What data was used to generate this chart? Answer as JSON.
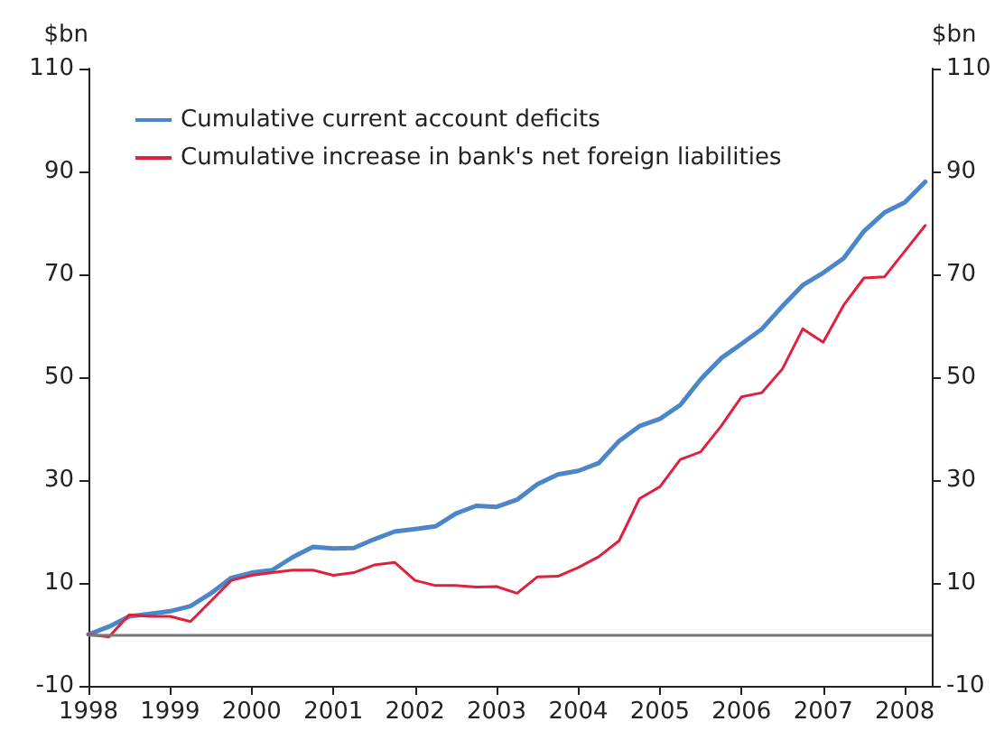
{
  "chart_data": {
    "type": "line",
    "ylabel": "$bn",
    "y2label": "$bn",
    "x": [
      1998,
      1998.25,
      1998.5,
      1998.75,
      1999,
      1999.25,
      1999.5,
      1999.75,
      2000,
      2000.25,
      2000.5,
      2000.75,
      2001,
      2001.25,
      2001.5,
      2001.75,
      2002,
      2002.25,
      2002.5,
      2002.75,
      2003,
      2003.25,
      2003.5,
      2003.75,
      2004,
      2004.25,
      2004.5,
      2004.75,
      2005,
      2005.25,
      2005.5,
      2005.75,
      2006,
      2006.25,
      2006.5,
      2006.75,
      2007,
      2007.25,
      2007.5,
      2007.75,
      2008,
      2008.25
    ],
    "series": [
      {
        "name": "Cumulative current account deficits",
        "color": "#4a86c8",
        "values": [
          0,
          1.5,
          3.5,
          4,
          4.5,
          5.5,
          8,
          11,
          12,
          12.5,
          15,
          17,
          16.7,
          16.8,
          18.5,
          20,
          20.5,
          21,
          23.5,
          25,
          24.8,
          26.2,
          29.2,
          31.1,
          31.8,
          33.3,
          37.6,
          40.5,
          41.9,
          44.6,
          49.6,
          53.7,
          56.5,
          59.4,
          63.8,
          67.9,
          70.3,
          73.1,
          78.4,
          82,
          84,
          88
        ]
      },
      {
        "name": "Cumulative increase in bank's net foreign liabilities",
        "color": "#e0203c",
        "values": [
          0,
          -0.5,
          3.8,
          3.5,
          3.5,
          2.5,
          6.5,
          10.5,
          11.5,
          12,
          12.5,
          12.5,
          11.5,
          12,
          13.5,
          14,
          10.5,
          9.5,
          9.5,
          9.2,
          9.3,
          8,
          11.2,
          11.3,
          13,
          15.1,
          18.2,
          26.4,
          28.7,
          34,
          35.5,
          40.5,
          46.2,
          47,
          51.6,
          59.4,
          56.8,
          64,
          69.3,
          69.5,
          74.5,
          79.5
        ]
      }
    ],
    "xlim": [
      1998,
      2008.33
    ],
    "xticks": [
      1998,
      1999,
      2000,
      2001,
      2002,
      2003,
      2004,
      2005,
      2006,
      2007,
      2008
    ],
    "ylim": [
      -10,
      110
    ],
    "yticks": [
      -10,
      10,
      30,
      50,
      70,
      90,
      110
    ],
    "y2lim": [
      -10,
      110
    ],
    "y2ticks": [
      -10,
      10,
      30,
      50,
      70,
      90,
      110
    ],
    "ref_lines": [
      {
        "axis": "y",
        "value": 0,
        "color": "#777777"
      }
    ],
    "grid": false,
    "legend": "top left",
    "marker": "none",
    "line_style": "solid"
  }
}
